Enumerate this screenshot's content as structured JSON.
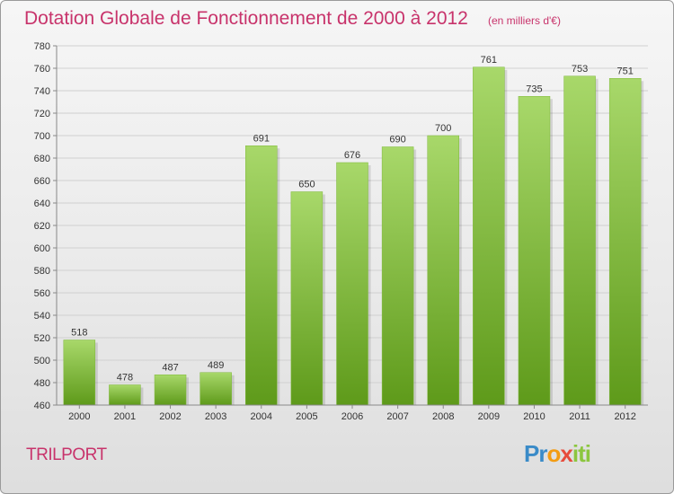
{
  "title": "Dotation Globale de Fonctionnement de 2000 à 2012",
  "unit_note": "(en milliers d'€)",
  "commune": "TRILPORT",
  "logo": {
    "text": "Proxiti",
    "letters": [
      {
        "ch": "P",
        "color": "#3a8bc8"
      },
      {
        "ch": "r",
        "color": "#3a8bc8"
      },
      {
        "ch": "o",
        "color": "#f39c12"
      },
      {
        "ch": "x",
        "color": "#e74c3c"
      },
      {
        "ch": "i",
        "color": "#8cc63f"
      },
      {
        "ch": "t",
        "color": "#8cc63f"
      },
      {
        "ch": "i",
        "color": "#8cc63f"
      }
    ]
  },
  "colors": {
    "bar_light": "#a8d86a",
    "bar_dark": "#5e9a1a",
    "grid": "#d0d0d0",
    "accent": "#c8336b"
  },
  "chart_data": {
    "type": "bar",
    "title": "Dotation Globale de Fonctionnement de 2000 à 2012",
    "categories": [
      "2000",
      "2001",
      "2002",
      "2003",
      "2004",
      "2005",
      "2006",
      "2007",
      "2008",
      "2009",
      "2010",
      "2011",
      "2012"
    ],
    "values": [
      518,
      478,
      487,
      489,
      691,
      650,
      676,
      690,
      700,
      761,
      735,
      753,
      751
    ],
    "ylim": [
      460,
      780
    ],
    "yticks": [
      460,
      480,
      500,
      520,
      540,
      560,
      580,
      600,
      620,
      640,
      660,
      680,
      700,
      720,
      740,
      760,
      780
    ],
    "grid": true,
    "xlabel": "",
    "ylabel": ""
  }
}
